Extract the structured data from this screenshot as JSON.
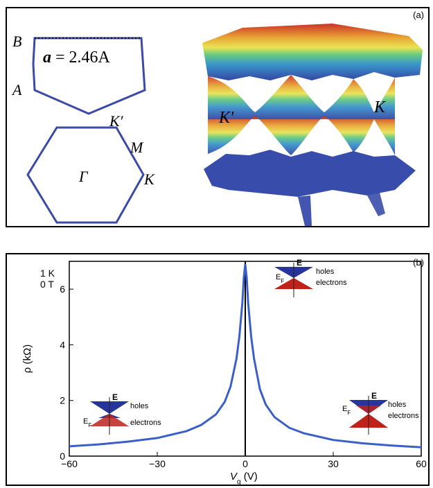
{
  "panel_a": {
    "label": "(a)",
    "lattice": {
      "point_b": "B",
      "point_a": "A",
      "lattice_const_symbol": "a",
      "lattice_const_eq": " = 2.46",
      "lattice_const_unit": "A"
    },
    "bz": {
      "gamma": "Γ",
      "m": "M",
      "k": "K",
      "k_prime": "K′"
    },
    "band": {
      "k_prime": "K′",
      "k": "K"
    },
    "colors": {
      "hexagon": "#3a4aa6"
    }
  },
  "panel_b": {
    "label": "(b)",
    "condition_temp": "1 K",
    "condition_field": "0 T",
    "insets": {
      "center": {
        "e": "E",
        "ef": "E",
        "ef_sub": "F",
        "holes": "holes",
        "electrons": "electrons"
      },
      "left": {
        "e": "E",
        "ef": "E",
        "ef_sub": "F",
        "holes": "holes",
        "electrons": "electrons"
      },
      "right": {
        "e": "E",
        "ef": "E",
        "ef_sub": "F",
        "holes": "holes",
        "electrons": "electrons"
      }
    }
  },
  "chart_data": {
    "type": "line",
    "xlabel_main": "V",
    "xlabel_sub": "g",
    "xlabel_unit": " (V)",
    "ylabel": "ρ (kΩ)",
    "xlim": [
      -60,
      60
    ],
    "ylim": [
      0,
      7
    ],
    "x_ticks": [
      -60,
      -30,
      0,
      30,
      60
    ],
    "x_tick_labels": [
      "−60",
      "−30",
      "0",
      "30",
      "60"
    ],
    "y_ticks": [
      0,
      2,
      4,
      6
    ],
    "y_tick_labels": [
      "0",
      "2",
      "4",
      "6"
    ],
    "grid": false,
    "series": [
      {
        "color": "#3a5fc8",
        "x": [
          -60,
          -50,
          -40,
          -30,
          -20,
          -15,
          -10,
          -7,
          -5,
          -3,
          -2,
          -1,
          -0.5,
          0,
          0.5,
          1,
          2,
          3,
          5,
          7,
          10,
          15,
          20,
          30,
          40,
          50,
          60
        ],
        "y": [
          0.35,
          0.42,
          0.52,
          0.65,
          0.9,
          1.12,
          1.5,
          1.95,
          2.5,
          3.5,
          4.3,
          5.5,
          6.4,
          6.9,
          6.4,
          5.5,
          4.3,
          3.5,
          2.4,
          1.85,
          1.4,
          1.02,
          0.82,
          0.58,
          0.46,
          0.38,
          0.32
        ]
      }
    ]
  }
}
